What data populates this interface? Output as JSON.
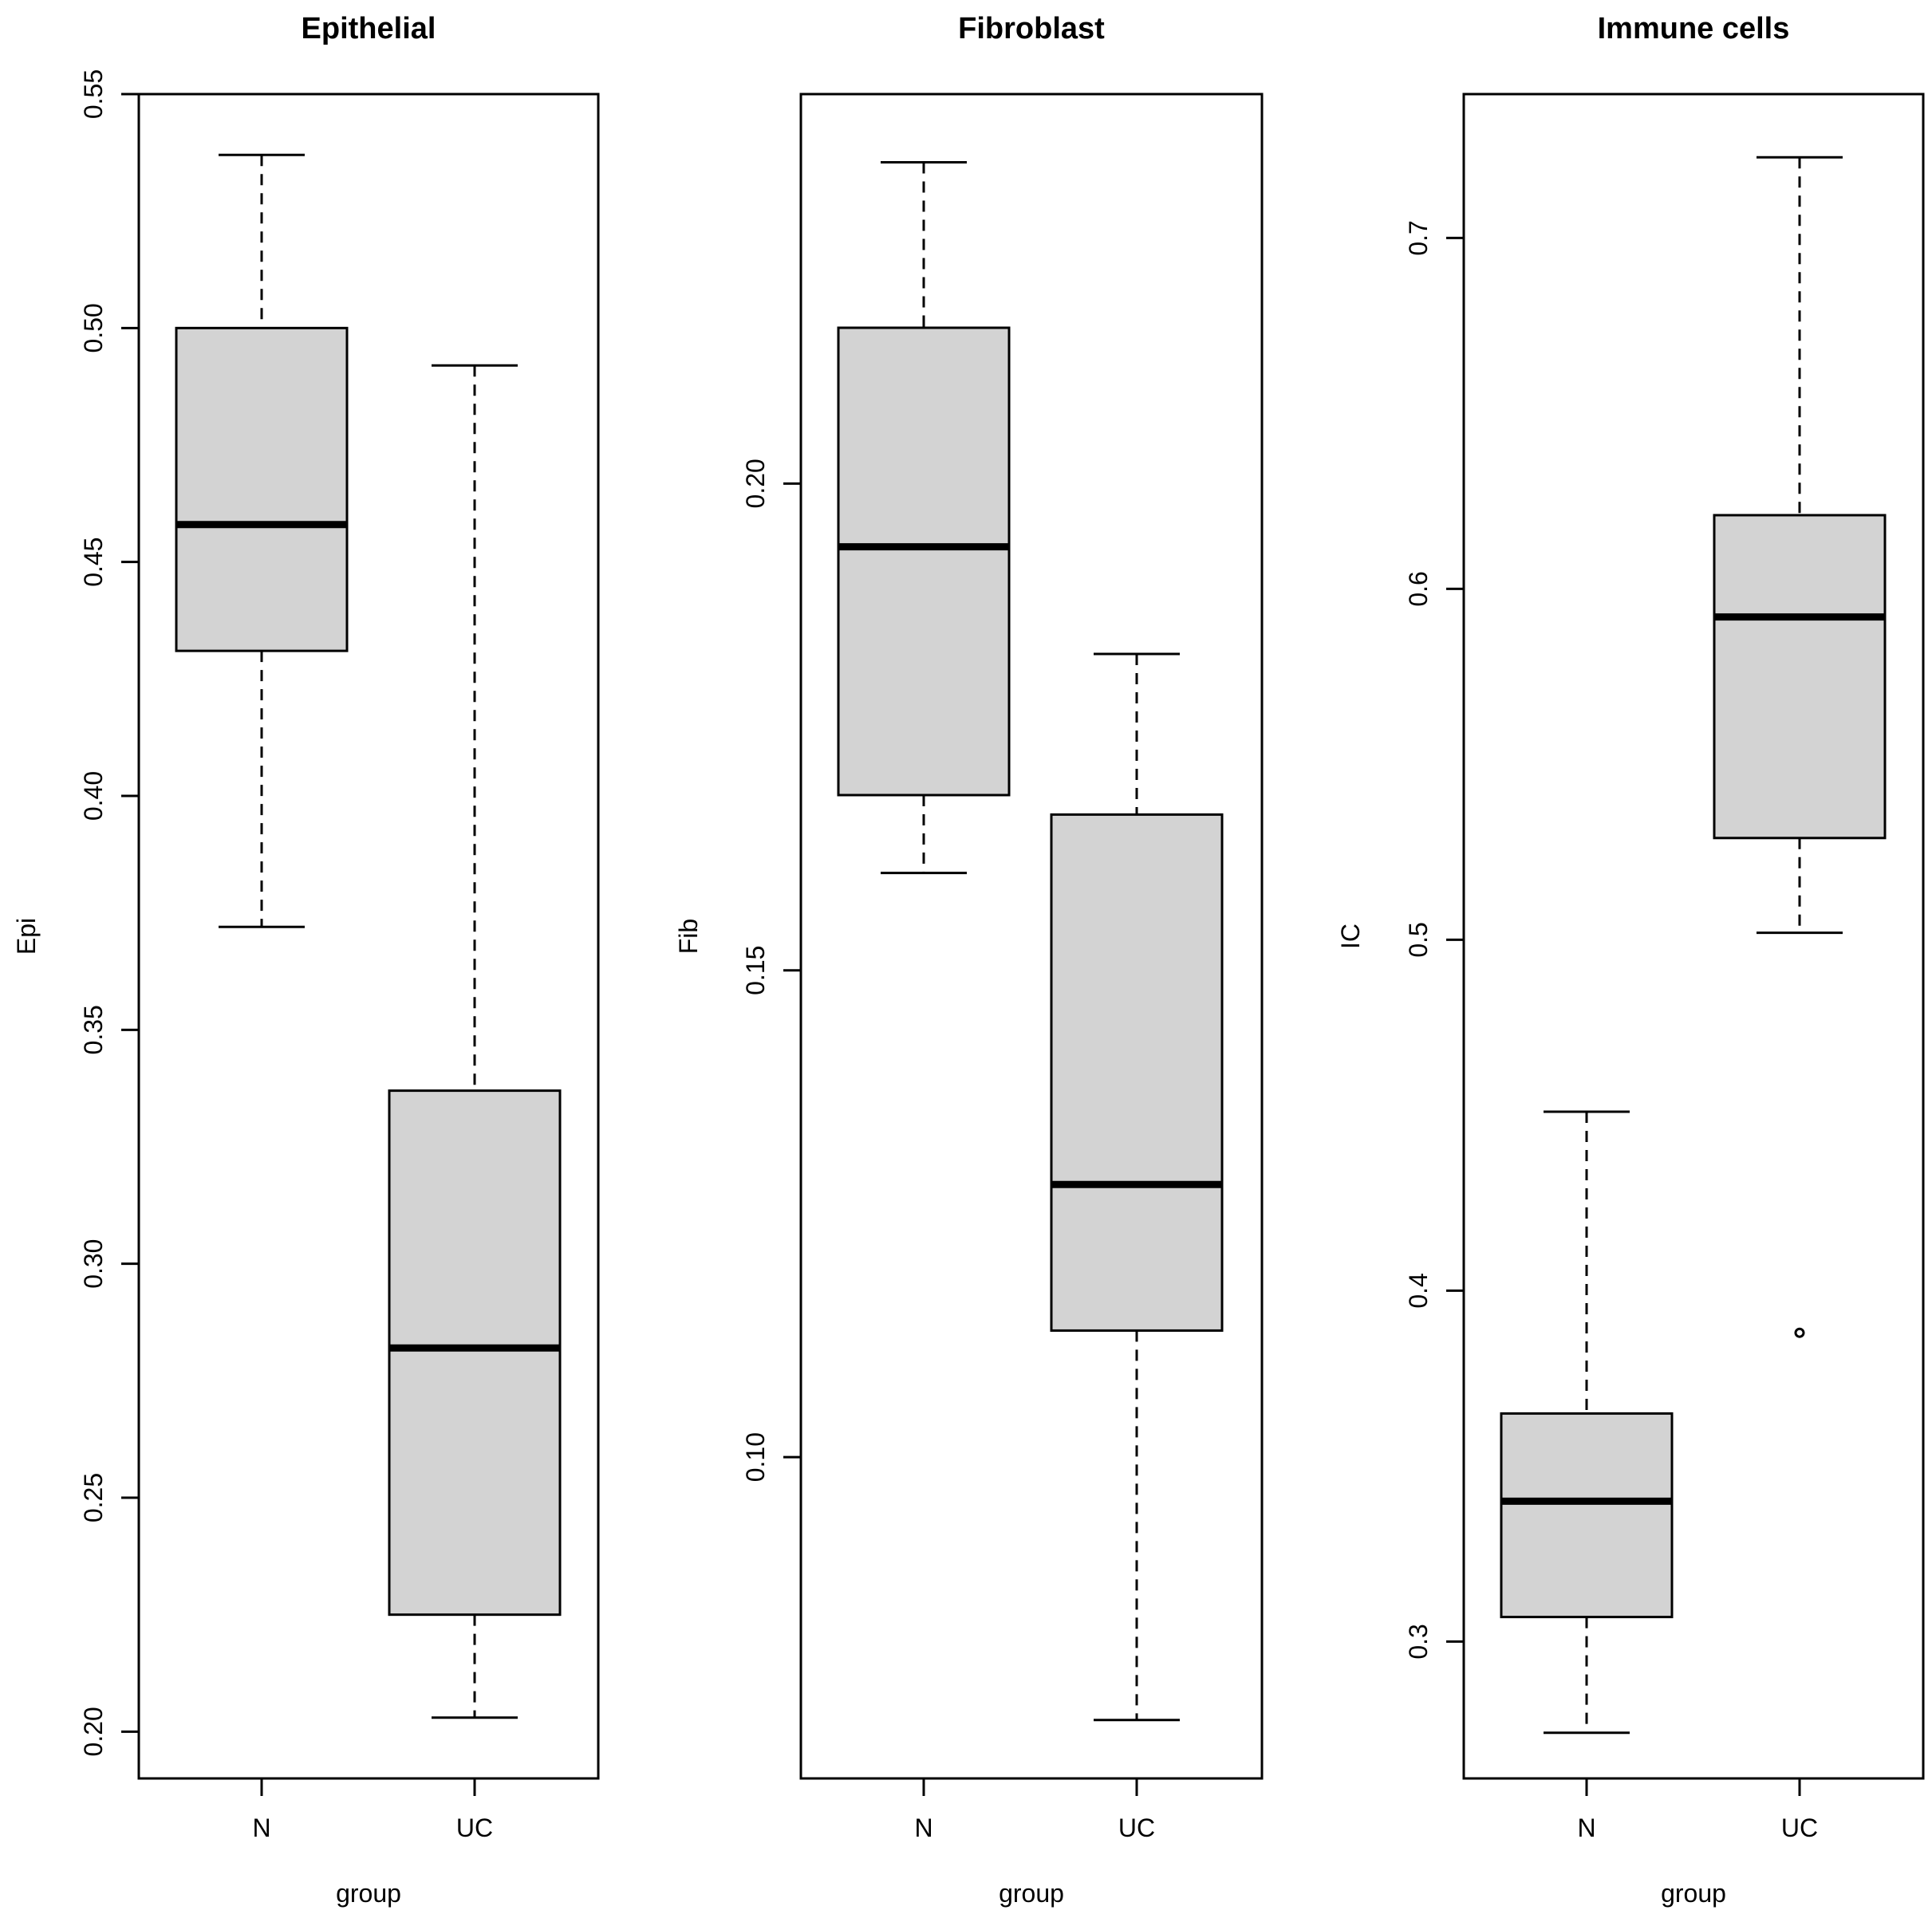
{
  "chart_data": [
    {
      "type": "boxplot",
      "title": "Epithelial",
      "xlabel": "group",
      "ylabel": "Epi",
      "ylim": [
        0.19,
        0.55
      ],
      "yticks": [
        0.2,
        0.25,
        0.3,
        0.35,
        0.4,
        0.45,
        0.5,
        0.55
      ],
      "ytick_labels": [
        "0.20",
        "0.25",
        "0.30",
        "0.35",
        "0.40",
        "0.45",
        "0.50",
        "0.55"
      ],
      "categories": [
        "N",
        "UC"
      ],
      "boxes": [
        {
          "group": "N",
          "whisker_low": 0.372,
          "q1": 0.431,
          "median": 0.458,
          "q3": 0.5,
          "whisker_high": 0.537,
          "outliers": []
        },
        {
          "group": "UC",
          "whisker_low": 0.203,
          "q1": 0.225,
          "median": 0.282,
          "q3": 0.337,
          "whisker_high": 0.492,
          "outliers": []
        }
      ]
    },
    {
      "type": "boxplot",
      "title": "Fibroblast",
      "xlabel": "group",
      "ylabel": "Fib",
      "ylim": [
        0.067,
        0.24
      ],
      "yticks": [
        0.1,
        0.15,
        0.2
      ],
      "ytick_labels": [
        "0.10",
        "0.15",
        "0.20"
      ],
      "categories": [
        "N",
        "UC"
      ],
      "boxes": [
        {
          "group": "N",
          "whisker_low": 0.16,
          "q1": 0.168,
          "median": 0.1935,
          "q3": 0.216,
          "whisker_high": 0.233,
          "outliers": []
        },
        {
          "group": "UC",
          "whisker_low": 0.073,
          "q1": 0.113,
          "median": 0.128,
          "q3": 0.166,
          "whisker_high": 0.1825,
          "outliers": []
        }
      ]
    },
    {
      "type": "boxplot",
      "title": "Immune cells",
      "xlabel": "group",
      "ylabel": "IC",
      "ylim": [
        0.261,
        0.741
      ],
      "yticks": [
        0.3,
        0.4,
        0.5,
        0.6,
        0.7
      ],
      "ytick_labels": [
        "0.3",
        "0.4",
        "0.5",
        "0.6",
        "0.7"
      ],
      "categories": [
        "N",
        "UC"
      ],
      "boxes": [
        {
          "group": "N",
          "whisker_low": 0.274,
          "q1": 0.307,
          "median": 0.34,
          "q3": 0.365,
          "whisker_high": 0.451,
          "outliers": []
        },
        {
          "group": "UC",
          "whisker_low": 0.502,
          "q1": 0.529,
          "median": 0.592,
          "q3": 0.621,
          "whisker_high": 0.723,
          "outliers": [
            0.388
          ]
        }
      ]
    }
  ],
  "colors": {
    "box_fill": "#d3d3d3",
    "line": "#000000",
    "background": "#ffffff"
  }
}
